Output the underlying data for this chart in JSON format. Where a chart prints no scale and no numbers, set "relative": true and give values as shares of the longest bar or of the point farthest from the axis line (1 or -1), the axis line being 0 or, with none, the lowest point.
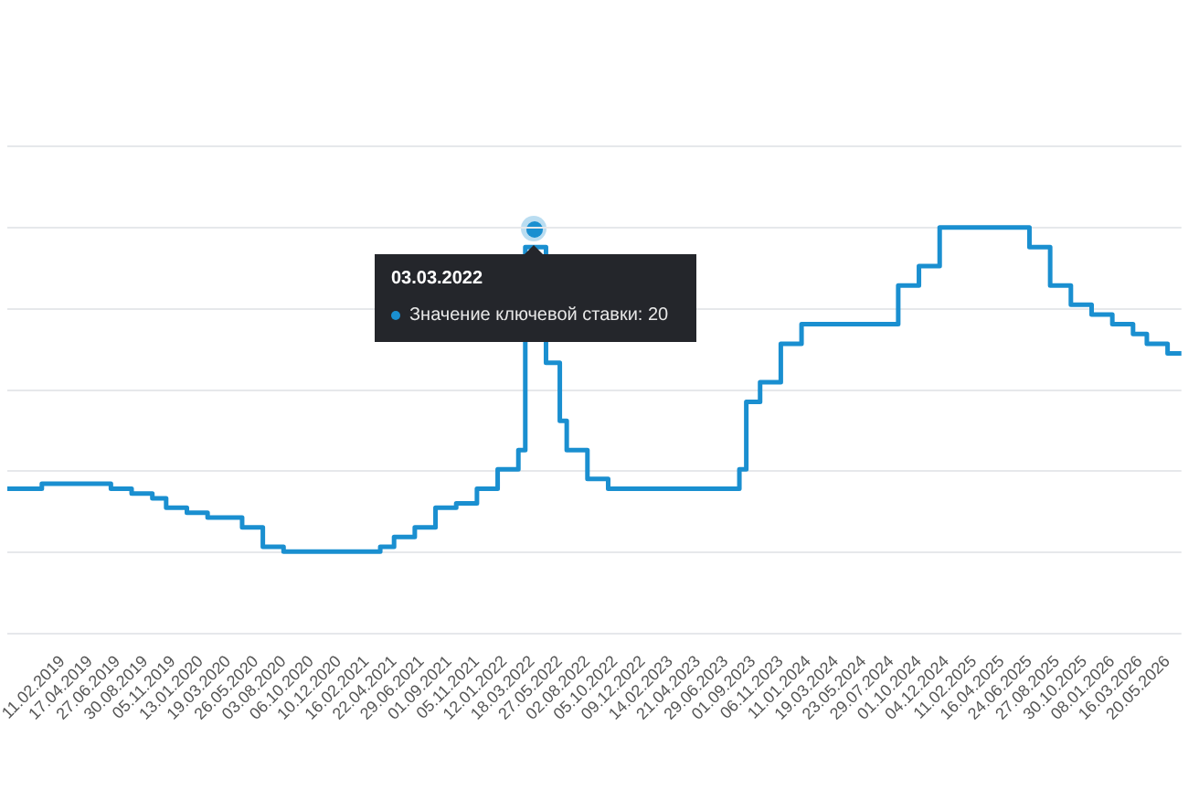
{
  "chart_data": {
    "type": "step",
    "relative": true,
    "categories": [
      null,
      null,
      null,
      null,
      null,
      null,
      null,
      null,
      "11.02.2019",
      null,
      null,
      null,
      "17.04.2019",
      null,
      null,
      null,
      "27.06.2019",
      null,
      null,
      null,
      "30.08.2019",
      null,
      null,
      null,
      "05.11.2019",
      null,
      null,
      null,
      "13.01.2020",
      null,
      null,
      null,
      "19.03.2020",
      null,
      null,
      null,
      "26.05.2020",
      null,
      null,
      null,
      "03.08.2020",
      null,
      null,
      null,
      "06.10.2020",
      null,
      null,
      null,
      "10.12.2020",
      null,
      null,
      null,
      "16.02.2021",
      null,
      null,
      null,
      "22.04.2021",
      null,
      null,
      null,
      "29.06.2021",
      null,
      null,
      null,
      "01.09.2021",
      null,
      null,
      null,
      "05.11.2021",
      null,
      null,
      null,
      "12.01.2022",
      null,
      null,
      null,
      "18.03.2022",
      null,
      null,
      null,
      "27.05.2022",
      null,
      null,
      null,
      "02.08.2022",
      null,
      null,
      null,
      "05.10.2022",
      null,
      null,
      null,
      "09.12.2022",
      null,
      null,
      null,
      "14.02.2023",
      null,
      null,
      null,
      "21.04.2023",
      null,
      null,
      null,
      "29.06.2023",
      null,
      null,
      null,
      "01.09.2023",
      null,
      null,
      null,
      "06.11.2023",
      null,
      null,
      null,
      "11.01.2024",
      null,
      null,
      null,
      "19.03.2024",
      null,
      null,
      null,
      "23.05.2024",
      null,
      null,
      null,
      "29.07.2024",
      null,
      null,
      null,
      "01.10.2024",
      null,
      null,
      null,
      "04.12.2024",
      null,
      null,
      null,
      "11.02.2025",
      null,
      null,
      null,
      "16.04.2025",
      null,
      null,
      null,
      "24.06.2025",
      null,
      null,
      null,
      "27.08.2025",
      null,
      null,
      null,
      "30.10.2025",
      null,
      null,
      null,
      "08.01.2026",
      null,
      null,
      null,
      "16.03.2026",
      null,
      null,
      null,
      "20.05.2026",
      null,
      null
    ],
    "series": [
      {
        "color": "#1a8fd0",
        "values": [
          0.357,
          0.357,
          0.357,
          0.357,
          0.357,
          0.357,
          0.369,
          0.369,
          0.369,
          0.369,
          0.369,
          0.369,
          0.369,
          0.369,
          0.369,
          0.369,
          0.357,
          0.357,
          0.357,
          0.345,
          0.345,
          0.345,
          0.333,
          0.333,
          0.31,
          0.31,
          0.31,
          0.298,
          0.298,
          0.298,
          0.286,
          0.286,
          0.286,
          0.286,
          0.286,
          0.262,
          0.262,
          0.262,
          0.214,
          0.214,
          0.214,
          0.202,
          0.202,
          0.202,
          0.202,
          0.202,
          0.202,
          0.202,
          0.202,
          0.202,
          0.202,
          0.202,
          0.202,
          0.202,
          0.202,
          0.214,
          0.214,
          0.238,
          0.238,
          0.238,
          0.262,
          0.262,
          0.262,
          0.31,
          0.31,
          0.31,
          0.321,
          0.321,
          0.321,
          0.357,
          0.357,
          0.357,
          0.405,
          0.405,
          0.405,
          0.452,
          0.952,
          0.952,
          0.952,
          null,
          0.667,
          0.524,
          0.452,
          0.452,
          0.452,
          0.381,
          0.381,
          0.381,
          0.357,
          0.357,
          0.357,
          0.357,
          0.357,
          0.357,
          0.357,
          0.357,
          0.357,
          0.357,
          0.357,
          0.357,
          0.357,
          0.357,
          0.357,
          0.357,
          0.357,
          0.357,
          0.357,
          0.405,
          0.571,
          0.571,
          0.619,
          0.619,
          0.619,
          0.714,
          0.714,
          0.714,
          0.762,
          0.762,
          0.762,
          0.762,
          0.762,
          0.762,
          0.762,
          0.762,
          0.762,
          0.762,
          0.762,
          0.762,
          0.762,
          0.762,
          0.857,
          0.857,
          0.857,
          0.905,
          0.905,
          0.905,
          1,
          1,
          1,
          1,
          1,
          1,
          1,
          1,
          1,
          1,
          1,
          1,
          1,
          0.952,
          0.952,
          0.952,
          0.857,
          0.857,
          0.857,
          0.81,
          0.81,
          0.81,
          0.786,
          0.786,
          0.786,
          0.762,
          0.762,
          0.762,
          0.738,
          0.738,
          0.714,
          0.714,
          0.714,
          0.69,
          0.69
        ]
      }
    ],
    "tick_labels": "x",
    "grid": "y",
    "legend": false,
    "marker": "none",
    "annotations": [
      "03.03.2022",
      "Значение ключевой ставки: 20"
    ]
  }
}
